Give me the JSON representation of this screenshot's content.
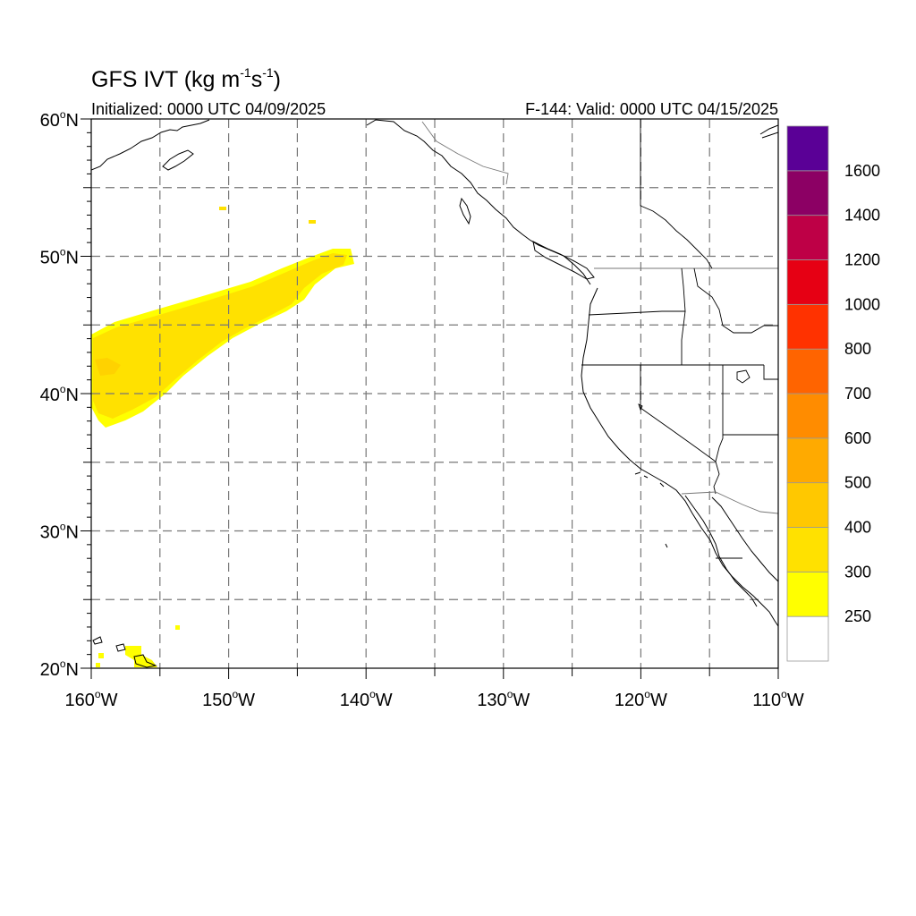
{
  "map": {
    "title_main": "GFS IVT (kg m",
    "title_sup1": "-1",
    "title_mid": "s",
    "title_sup2": "-1",
    "title_end": ")",
    "initialized": "Initialized: 0000 UTC 04/09/2025",
    "valid": "F-144: Valid: 0000 UTC 04/15/2025",
    "extent": {
      "lon": [
        -160,
        -110
      ],
      "lat": [
        20,
        60
      ]
    },
    "grid": "dashed",
    "lat_labels": [
      {
        "lat": 60,
        "label": "60"
      },
      {
        "lat": 50,
        "label": "50"
      },
      {
        "lat": 40,
        "label": "40"
      },
      {
        "lat": 30,
        "label": "30"
      },
      {
        "lat": 20,
        "label": "20"
      }
    ],
    "lat_suffix": "N",
    "lon_labels": [
      {
        "lon": -160,
        "label": "160"
      },
      {
        "lon": -150,
        "label": "150"
      },
      {
        "lon": -140,
        "label": "140"
      },
      {
        "lon": -130,
        "label": "130"
      },
      {
        "lon": -120,
        "label": "120"
      },
      {
        "lon": -110,
        "label": "110"
      }
    ],
    "lon_suffix": "W",
    "degree": "o"
  },
  "colorbar": {
    "levels": [
      "250",
      "300",
      "400",
      "500",
      "600",
      "700",
      "800",
      "1000",
      "1200",
      "1400",
      "1600"
    ],
    "colors": [
      "#ffffff",
      "#ffff00",
      "#ffe100",
      "#ffc800",
      "#ffaa00",
      "#ff8c00",
      "#ff6400",
      "#ff3200",
      "#e60014",
      "#be0046",
      "#8c0064",
      "#5a0096"
    ]
  },
  "colors": {
    "grid": "#777777",
    "coast": "#000000",
    "lakes": "#000000"
  }
}
